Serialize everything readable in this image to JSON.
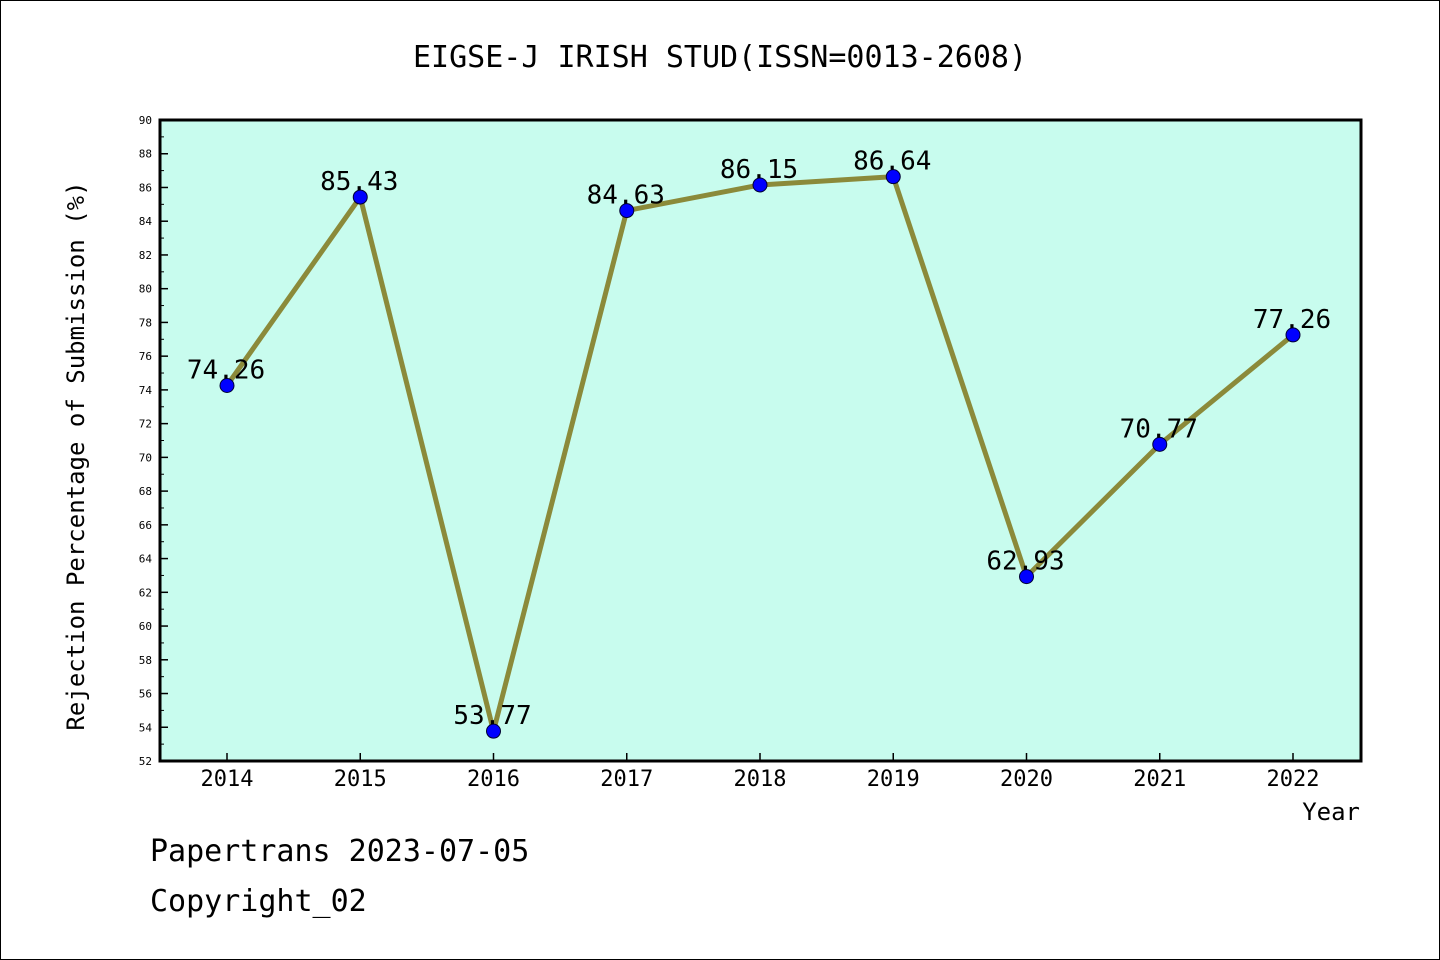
{
  "chart_data": {
    "type": "line",
    "title": "EIGSE-J IRISH STUD(ISSN=0013-2608)",
    "xlabel": "Year",
    "ylabel": "Rejection Percentage of Submission (%)",
    "categories": [
      "2014",
      "2015",
      "2016",
      "2017",
      "2018",
      "2019",
      "2020",
      "2021",
      "2022"
    ],
    "series": [
      {
        "values": [
          74.26,
          85.43,
          53.77,
          84.63,
          86.15,
          86.64,
          62.93,
          70.77,
          77.26
        ],
        "value_labels": [
          "74.26",
          "85.43",
          "53.77",
          "84.63",
          "86.15",
          "86.64",
          "62.93",
          "70.77",
          "77.26"
        ]
      }
    ],
    "ylim": [
      52,
      90
    ],
    "yticks": [
      "52",
      "54",
      "56",
      "58",
      "60",
      "62",
      "64",
      "66",
      "68",
      "70",
      "72",
      "74",
      "76",
      "78",
      "80",
      "82",
      "84",
      "86",
      "88",
      "90"
    ],
    "grid": false,
    "colors": {
      "plot_background": "#c8fcee",
      "line": "#8b8a3a",
      "marker": "#0000ff"
    }
  },
  "footer": {
    "line1": "Papertrans 2023-07-05",
    "line2": "Copyright_02"
  }
}
